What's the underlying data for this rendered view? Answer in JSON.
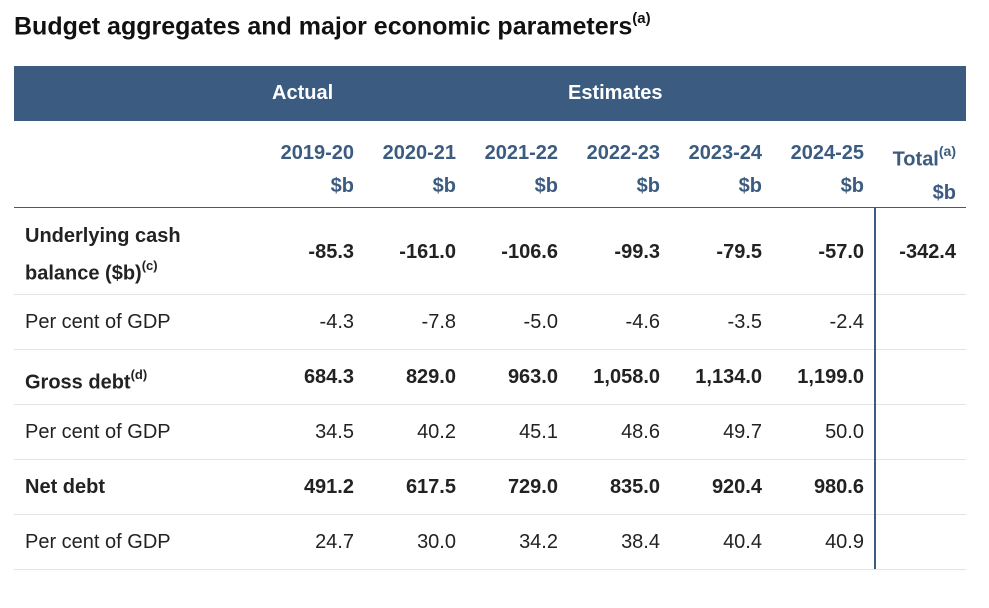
{
  "title": {
    "text": "Budget aggregates and major economic parameters",
    "note": "(a)"
  },
  "header": {
    "actual": "Actual",
    "estimates": "Estimates"
  },
  "columns": [
    {
      "year": "2019-20",
      "unit": "$b",
      "note": ""
    },
    {
      "year": "2020-21",
      "unit": "$b",
      "note": ""
    },
    {
      "year": "2021-22",
      "unit": "$b",
      "note": ""
    },
    {
      "year": "2022-23",
      "unit": "$b",
      "note": ""
    },
    {
      "year": "2023-24",
      "unit": "$b",
      "note": ""
    },
    {
      "year": "2024-25",
      "unit": "$b",
      "note": ""
    },
    {
      "year": "Total",
      "unit": "$b",
      "note": "(a)"
    }
  ],
  "rows": [
    {
      "label_line1": "Underlying cash",
      "label_line2": "balance ($b)",
      "note": "(c)",
      "values": [
        "-85.3",
        "-161.0",
        "-106.6",
        "-99.3",
        "-79.5",
        "-57.0",
        "-342.4"
      ]
    },
    {
      "label": "Per cent of GDP",
      "values": [
        "-4.3",
        "-7.8",
        "-5.0",
        "-4.6",
        "-3.5",
        "-2.4",
        ""
      ]
    },
    {
      "label": "Gross debt",
      "note": "(d)",
      "values": [
        "684.3",
        "829.0",
        "963.0",
        "1,058.0",
        "1,134.0",
        "1,199.0",
        ""
      ]
    },
    {
      "label": "Per cent of GDP",
      "values": [
        "34.5",
        "40.2",
        "45.1",
        "48.6",
        "49.7",
        "50.0",
        ""
      ]
    },
    {
      "label": "Net debt",
      "values": [
        "491.2",
        "617.5",
        "729.0",
        "835.0",
        "920.4",
        "980.6",
        ""
      ]
    },
    {
      "label": "Per cent of GDP",
      "values": [
        "24.7",
        "30.0",
        "34.2",
        "38.4",
        "40.4",
        "40.9",
        ""
      ]
    }
  ]
}
